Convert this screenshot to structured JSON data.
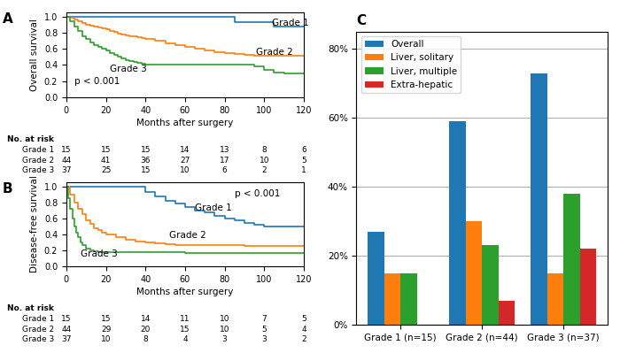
{
  "chart_data": [
    {
      "type": "step",
      "title": "A",
      "x_label": "Months after surgery",
      "y_label": "Overall survival",
      "xlim": [
        0,
        120
      ],
      "xticks": [
        0,
        20,
        40,
        60,
        80,
        100,
        120
      ],
      "ylim": [
        0.0,
        1.05
      ],
      "yticks": [
        {
          "value": 0.0,
          "label": "0.0"
        },
        0.2,
        0.4,
        0.6,
        0.8,
        {
          "value": 1.0,
          "label": "1.0"
        }
      ],
      "series": [
        {
          "name": "Grade 1",
          "x": [
            0,
            2,
            4,
            6,
            8,
            10,
            12,
            14,
            16,
            18,
            20,
            22,
            24,
            26,
            28,
            30,
            32,
            34,
            36,
            38,
            40,
            45,
            50,
            55,
            60,
            65,
            70,
            75,
            80,
            85,
            90,
            95,
            100,
            105,
            110,
            115,
            120
          ],
          "values": [
            1.0,
            1.0,
            1.0,
            1.0,
            1.0,
            1.0,
            1.0,
            1.0,
            1.0,
            1.0,
            1.0,
            1.0,
            1.0,
            1.0,
            1.0,
            1.0,
            1.0,
            1.0,
            1.0,
            1.0,
            1.0,
            1.0,
            1.0,
            1.0,
            1.0,
            1.0,
            1.0,
            1.0,
            1.0,
            0.93,
            0.93,
            0.93,
            0.93,
            0.87,
            0.87,
            0.87,
            0.87
          ]
        },
        {
          "name": "Grade 2",
          "x": [
            0,
            2,
            4,
            6,
            8,
            10,
            12,
            14,
            16,
            18,
            20,
            22,
            24,
            26,
            28,
            30,
            32,
            34,
            36,
            38,
            40,
            45,
            50,
            55,
            60,
            65,
            70,
            75,
            80,
            85,
            90,
            95,
            100,
            105,
            110,
            115,
            120
          ],
          "values": [
            1.0,
            0.98,
            0.96,
            0.94,
            0.92,
            0.9,
            0.89,
            0.87,
            0.86,
            0.85,
            0.84,
            0.82,
            0.81,
            0.79,
            0.78,
            0.77,
            0.76,
            0.75,
            0.74,
            0.73,
            0.72,
            0.7,
            0.67,
            0.65,
            0.62,
            0.6,
            0.58,
            0.56,
            0.55,
            0.54,
            0.52,
            0.51,
            0.51,
            0.51,
            0.51,
            0.51,
            0.51
          ]
        },
        {
          "name": "Grade 3",
          "x": [
            0,
            2,
            4,
            6,
            8,
            10,
            12,
            14,
            16,
            18,
            20,
            22,
            24,
            26,
            28,
            30,
            32,
            34,
            36,
            38,
            40,
            45,
            50,
            55,
            60,
            65,
            70,
            75,
            80,
            85,
            90,
            95,
            100,
            105,
            110,
            115,
            120
          ],
          "values": [
            1.0,
            0.94,
            0.88,
            0.82,
            0.76,
            0.72,
            0.68,
            0.65,
            0.62,
            0.6,
            0.58,
            0.55,
            0.52,
            0.5,
            0.48,
            0.46,
            0.45,
            0.44,
            0.43,
            0.42,
            0.41,
            0.4,
            0.4,
            0.4,
            0.4,
            0.4,
            0.4,
            0.4,
            0.4,
            0.4,
            0.4,
            0.38,
            0.34,
            0.31,
            0.3,
            0.29,
            0.29
          ]
        }
      ],
      "annotations": [
        {
          "text": "Grade 1",
          "x": 104,
          "y": 0.89
        },
        {
          "text": "Grade 2",
          "x": 96,
          "y": 0.53
        },
        {
          "text": "Grade 3",
          "x": 22,
          "y": 0.32
        },
        {
          "text": "p < 0.001",
          "x": 4,
          "y": 0.16
        }
      ],
      "at_risk": {
        "title": "No. at risk",
        "x": [
          0,
          20,
          40,
          60,
          80,
          100,
          120
        ],
        "rows": [
          {
            "name": "Grade 1",
            "values": [
              15,
              15,
              15,
              14,
              13,
              8,
              6
            ]
          },
          {
            "name": "Grade 2",
            "values": [
              44,
              41,
              36,
              27,
              17,
              10,
              5
            ]
          },
          {
            "name": "Grade 3",
            "values": [
              37,
              25,
              15,
              10,
              6,
              2,
              1
            ]
          }
        ]
      }
    },
    {
      "type": "step",
      "title": "B",
      "x_label": "Months after surgery",
      "y_label": "Disease-free survival",
      "xlim": [
        0,
        120
      ],
      "xticks": [
        0,
        20,
        40,
        60,
        80,
        100,
        120
      ],
      "ylim": [
        0.0,
        1.05
      ],
      "yticks": [
        {
          "value": 0.0,
          "label": "0.0"
        },
        0.2,
        0.4,
        0.6,
        0.8,
        {
          "value": 1.0,
          "label": "1.0"
        }
      ],
      "series": [
        {
          "name": "Grade 1",
          "x": [
            0,
            2,
            5,
            8,
            10,
            15,
            20,
            25,
            30,
            35,
            40,
            45,
            50,
            55,
            60,
            65,
            70,
            75,
            80,
            85,
            90,
            95,
            100,
            105,
            110,
            115,
            120
          ],
          "values": [
            1.0,
            1.0,
            1.0,
            1.0,
            1.0,
            1.0,
            1.0,
            1.0,
            1.0,
            1.0,
            0.93,
            0.87,
            0.82,
            0.78,
            0.74,
            0.7,
            0.67,
            0.63,
            0.6,
            0.57,
            0.54,
            0.52,
            0.5,
            0.5,
            0.5,
            0.5,
            0.5
          ]
        },
        {
          "name": "Grade 2",
          "x": [
            0,
            2,
            4,
            6,
            8,
            10,
            12,
            14,
            16,
            18,
            20,
            25,
            30,
            35,
            40,
            45,
            50,
            55,
            60,
            65,
            70,
            75,
            80,
            85,
            90,
            95,
            100,
            105,
            110,
            115,
            120
          ],
          "values": [
            1.0,
            0.9,
            0.8,
            0.72,
            0.65,
            0.58,
            0.53,
            0.48,
            0.45,
            0.42,
            0.4,
            0.36,
            0.33,
            0.31,
            0.3,
            0.29,
            0.28,
            0.27,
            0.26,
            0.26,
            0.26,
            0.26,
            0.26,
            0.26,
            0.25,
            0.25,
            0.25,
            0.25,
            0.25,
            0.25,
            0.25
          ]
        },
        {
          "name": "Grade 3",
          "x": [
            0,
            1,
            2,
            3,
            4,
            5,
            6,
            7,
            8,
            10,
            12,
            14,
            16,
            18,
            20,
            25,
            30,
            35,
            40,
            45,
            50,
            55,
            60,
            65,
            70,
            75,
            80,
            85,
            90,
            95,
            100,
            105,
            110,
            115,
            120
          ],
          "values": [
            1.0,
            0.85,
            0.72,
            0.6,
            0.5,
            0.42,
            0.36,
            0.3,
            0.26,
            0.22,
            0.2,
            0.19,
            0.18,
            0.18,
            0.18,
            0.18,
            0.18,
            0.18,
            0.18,
            0.18,
            0.18,
            0.18,
            0.17,
            0.17,
            0.17,
            0.17,
            0.17,
            0.17,
            0.17,
            0.17,
            0.17,
            0.17,
            0.17,
            0.17,
            0.17
          ]
        }
      ],
      "annotations": [
        {
          "text": "Grade 1",
          "x": 65,
          "y": 0.7
        },
        {
          "text": "Grade 2",
          "x": 52,
          "y": 0.35
        },
        {
          "text": "Grade 3",
          "x": 7,
          "y": 0.12
        },
        {
          "text": "p < 0.001",
          "x": 85,
          "y": 0.87
        }
      ],
      "at_risk": {
        "title": "No. at risk",
        "x": [
          0,
          20,
          40,
          60,
          80,
          100,
          120
        ],
        "rows": [
          {
            "name": "Grade 1",
            "values": [
              15,
              15,
              14,
              11,
              10,
              7,
              5
            ]
          },
          {
            "name": "Grade 2",
            "values": [
              44,
              29,
              20,
              15,
              10,
              5,
              4
            ]
          },
          {
            "name": "Grade 3",
            "values": [
              37,
              10,
              8,
              4,
              3,
              3,
              2
            ]
          }
        ]
      }
    },
    {
      "type": "bar",
      "title": "C",
      "categories": [
        "Grade 1 (n=15)",
        "Grade 2 (n=44)",
        "Grade 3 (n=37)"
      ],
      "series": [
        {
          "name": "Overall",
          "values": [
            27,
            59,
            73
          ]
        },
        {
          "name": "Liver, solitary",
          "values": [
            15,
            30,
            15
          ]
        },
        {
          "name": "Liver, multiple",
          "values": [
            15,
            23,
            38
          ]
        },
        {
          "name": "Extra-hepatic",
          "values": [
            0,
            7,
            22
          ]
        }
      ],
      "ylim": [
        0,
        85
      ],
      "yticks": [
        {
          "value": 0,
          "label": "0%"
        },
        {
          "value": 20,
          "label": "20%"
        },
        {
          "value": 40,
          "label": "40%"
        },
        {
          "value": 60,
          "label": "60%"
        },
        {
          "value": 80,
          "label": "80%"
        }
      ],
      "grid": true,
      "legend": "upper left"
    }
  ]
}
